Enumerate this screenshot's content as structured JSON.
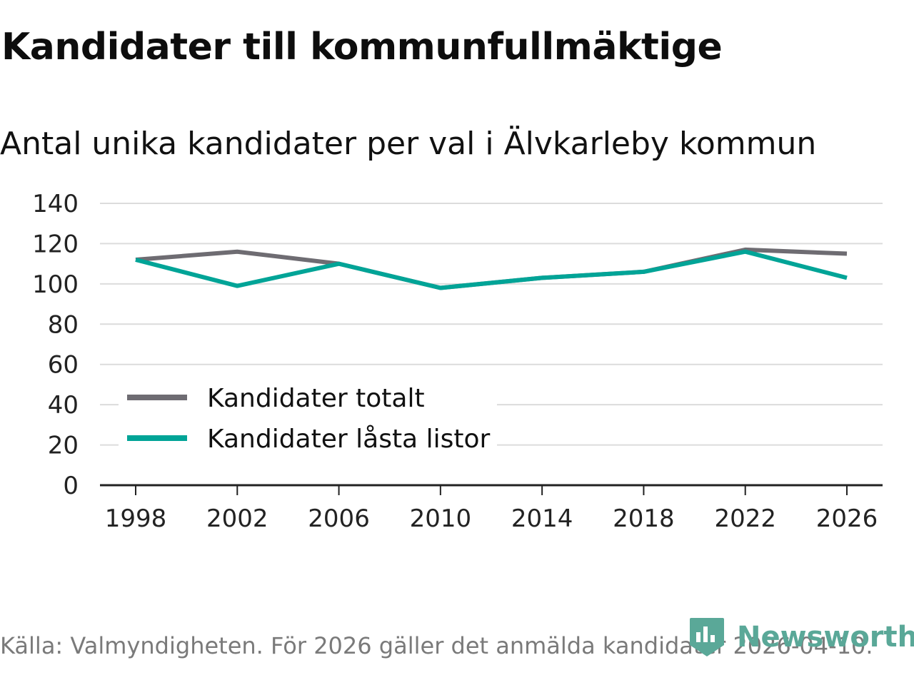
{
  "header": {
    "title": "Kandidater till kommunfullmäktige",
    "subtitle": "Antal unika kandidater per val i Älvkarleby kommun"
  },
  "footer": {
    "source": "Källa: Valmyndigheten. För 2026 gäller det anmälda kandidater 2026-04-10.",
    "brand": "Newsworthy"
  },
  "colors": {
    "series_total": "#6e6c72",
    "series_locked": "#00a497",
    "grid": "#dcdcdc",
    "axis": "#222222",
    "brand": "#5aa898"
  },
  "chart_data": {
    "type": "line",
    "title": "Antal unika kandidater per val i Älvkarleby kommun",
    "xlabel": "",
    "ylabel": "",
    "x": [
      1998,
      2002,
      2006,
      2010,
      2014,
      2018,
      2022,
      2026
    ],
    "x_ticks": [
      "1998",
      "2002",
      "2006",
      "2010",
      "2014",
      "2018",
      "2022",
      "2026"
    ],
    "y_ticks": [
      "0",
      "20",
      "40",
      "60",
      "80",
      "100",
      "120",
      "140"
    ],
    "ylim": [
      0,
      140
    ],
    "grid": true,
    "legend_position": "bottom-left",
    "series": [
      {
        "name": "Kandidater totalt",
        "values": [
          112,
          116,
          110,
          98,
          103,
          106,
          117,
          115
        ]
      },
      {
        "name": "Kandidater låsta listor",
        "values": [
          112,
          99,
          110,
          98,
          103,
          106,
          116,
          103
        ]
      }
    ]
  }
}
